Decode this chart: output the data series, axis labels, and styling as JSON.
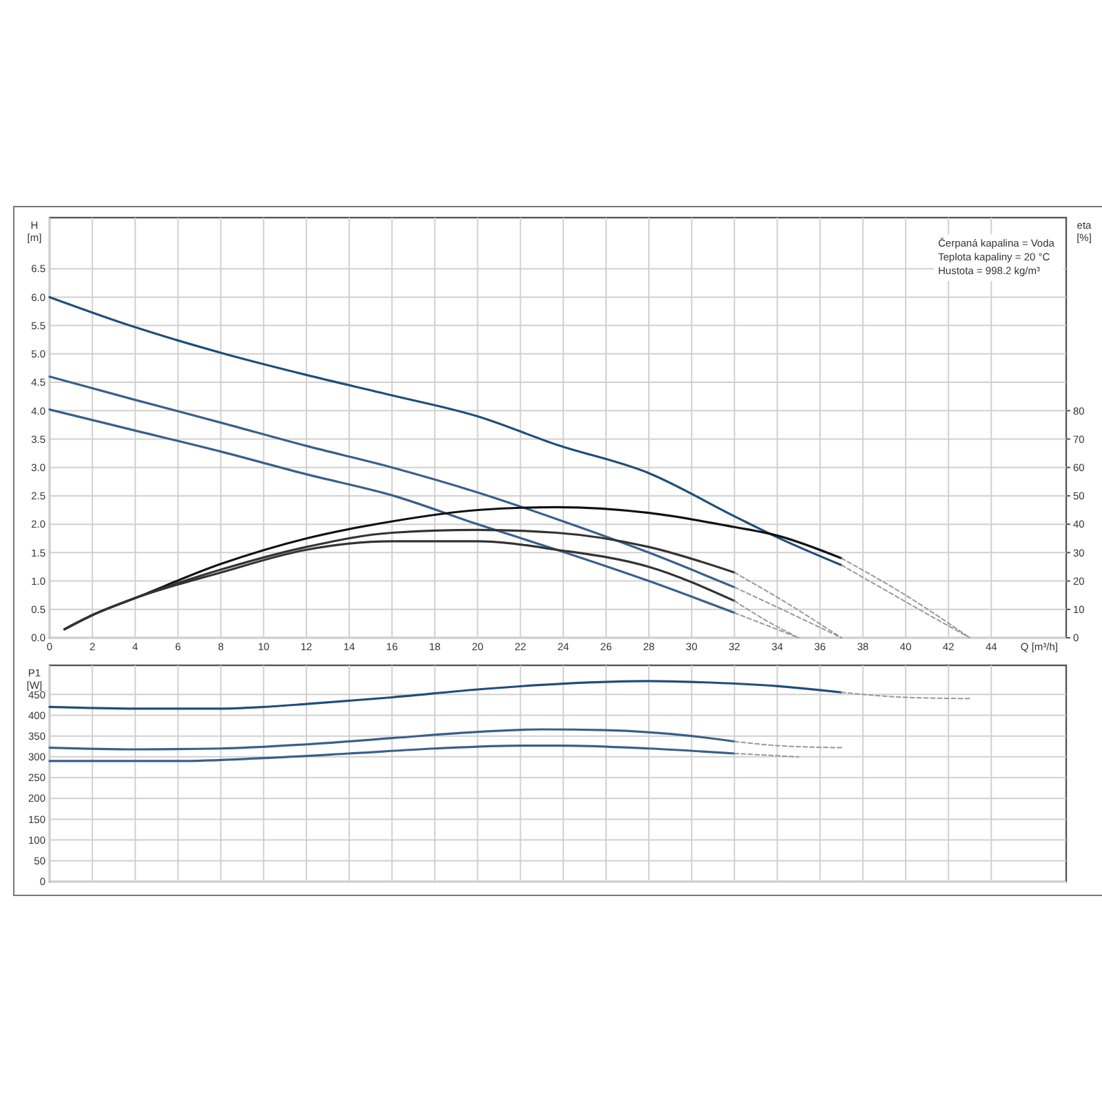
{
  "chart_data": [
    {
      "type": "line",
      "xlabel": "Q [m³/h]",
      "ylabel": "H [m]",
      "y2label": "eta [%]",
      "xlim": [
        0,
        47.5
      ],
      "xticks": [
        0,
        2,
        4,
        6,
        8,
        10,
        12,
        14,
        16,
        18,
        20,
        22,
        24,
        26,
        28,
        30,
        32,
        34,
        36,
        38,
        40,
        42,
        44
      ],
      "ylim": [
        0,
        7.4
      ],
      "yticks": [
        {
          "value": 0,
          "label": "0.0"
        },
        0.5,
        {
          "value": 1,
          "label": "1.0"
        },
        1.5,
        {
          "value": 2,
          "label": "2.0"
        },
        2.5,
        {
          "value": 3,
          "label": "3.0"
        },
        3.5,
        {
          "value": 4,
          "label": "4.0"
        },
        4.5,
        {
          "value": 5,
          "label": "5.0"
        },
        5.5,
        {
          "value": 6,
          "label": "6.0"
        },
        6.5
      ],
      "y2lim": [
        0,
        148
      ],
      "y2ticks": [
        0,
        10,
        20,
        30,
        40,
        50,
        60,
        70,
        80
      ],
      "grid": true,
      "marker": "none",
      "line_style": "solid",
      "annotations": [
        "Čerpaná kapalina = Voda",
        "Teplota kapaliny = 20 °C",
        "Hustota = 998.2 kg/m³"
      ],
      "series": [
        {
          "color": "#1f4e79",
          "x": [
            0,
            4,
            8,
            12,
            16,
            20,
            23.7,
            28,
            32,
            34,
            37
          ],
          "values": [
            6.0,
            5.47,
            5.02,
            4.63,
            4.27,
            3.9,
            3.4,
            2.9,
            2.14,
            1.77,
            1.28
          ]
        },
        {
          "color": "#3a5f8a",
          "x": [
            0,
            4,
            8,
            12,
            16,
            20,
            23.7,
            28,
            32
          ],
          "values": [
            4.6,
            4.19,
            3.79,
            3.38,
            3.0,
            2.56,
            2.09,
            1.5,
            0.89
          ]
        },
        {
          "color": "#3a5f8a",
          "x": [
            0,
            4,
            8,
            12,
            16,
            20,
            23.7,
            28,
            32
          ],
          "values": [
            4.02,
            3.65,
            3.28,
            2.88,
            2.51,
            2.0,
            1.55,
            1.0,
            0.44
          ]
        },
        {
          "color": "#999999",
          "line_style": "dashed",
          "x": [
            37,
            39,
            41,
            43
          ],
          "values": [
            1.28,
            0.85,
            0.42,
            0
          ]
        },
        {
          "color": "#999999",
          "line_style": "dashed",
          "x": [
            32,
            34.5,
            37
          ],
          "values": [
            0.89,
            0.45,
            0
          ]
        },
        {
          "color": "#999999",
          "line_style": "dashed",
          "x": [
            32,
            33.5,
            35
          ],
          "values": [
            0.44,
            0.22,
            0
          ]
        },
        {
          "color": "#111111",
          "axis": "y2",
          "x": [
            0.7,
            2,
            4,
            8,
            12,
            16,
            20,
            23.7,
            28,
            32,
            34,
            37
          ],
          "values": [
            3,
            8,
            14,
            26,
            35,
            41,
            45,
            46,
            44,
            39,
            36,
            28
          ]
        },
        {
          "color": "#333333",
          "axis": "y2",
          "x": [
            0.7,
            2,
            4,
            8,
            12,
            16,
            20,
            23.7,
            28,
            32
          ],
          "values": [
            3,
            8,
            14,
            24,
            32,
            37,
            38,
            37,
            32,
            23
          ]
        },
        {
          "color": "#333333",
          "axis": "y2",
          "x": [
            0.7,
            2,
            4,
            8,
            12,
            16,
            20,
            23.7,
            28,
            32
          ],
          "values": [
            3,
            8,
            14,
            23,
            31,
            34,
            34,
            31,
            25,
            13
          ]
        },
        {
          "color": "#999999",
          "axis": "y2",
          "line_style": "dashed",
          "x": [
            37,
            40,
            43
          ],
          "values": [
            28,
            15,
            0
          ]
        },
        {
          "color": "#999999",
          "axis": "y2",
          "line_style": "dashed",
          "x": [
            32,
            34.5,
            37
          ],
          "values": [
            23,
            12,
            0
          ]
        },
        {
          "color": "#999999",
          "axis": "y2",
          "line_style": "dashed",
          "x": [
            32,
            33.5,
            35
          ],
          "values": [
            13,
            6,
            0
          ]
        }
      ]
    },
    {
      "type": "line",
      "ylabel": "P1 [W]",
      "tick_labels": "y",
      "xlim": [
        0,
        47.5
      ],
      "xticks": [
        0,
        2,
        4,
        6,
        8,
        10,
        12,
        14,
        16,
        18,
        20,
        22,
        24,
        26,
        28,
        30,
        32,
        34,
        36,
        38,
        40,
        42,
        44
      ],
      "ylim": [
        0,
        520
      ],
      "yticks": [
        0,
        50,
        100,
        150,
        200,
        250,
        300,
        350,
        400,
        450
      ],
      "grid": true,
      "marker": "none",
      "line_style": "solid",
      "series": [
        {
          "color": "#1f4e79",
          "x": [
            0,
            4,
            8,
            10,
            12,
            16,
            20,
            24,
            28,
            30,
            34,
            37
          ],
          "values": [
            420,
            416,
            416,
            420,
            427,
            443,
            462,
            476,
            482,
            480,
            470,
            455
          ]
        },
        {
          "color": "#3a5f8a",
          "x": [
            0,
            4,
            8,
            12,
            16,
            20,
            23,
            26,
            30,
            32
          ],
          "values": [
            322,
            318,
            320,
            330,
            345,
            360,
            366,
            364,
            350,
            337
          ]
        },
        {
          "color": "#3a5f8a",
          "x": [
            0,
            6,
            10,
            14,
            18,
            22,
            24,
            28,
            32
          ],
          "values": [
            290,
            290,
            297,
            308,
            320,
            327,
            327,
            320,
            308
          ]
        },
        {
          "color": "#999999",
          "line_style": "dashed",
          "x": [
            37,
            40,
            43
          ],
          "values": [
            455,
            443,
            440
          ]
        },
        {
          "color": "#999999",
          "line_style": "dashed",
          "x": [
            32,
            34,
            37
          ],
          "values": [
            337,
            327,
            322
          ]
        },
        {
          "color": "#999999",
          "line_style": "dashed",
          "x": [
            32,
            35
          ],
          "values": [
            308,
            300
          ]
        }
      ]
    }
  ]
}
